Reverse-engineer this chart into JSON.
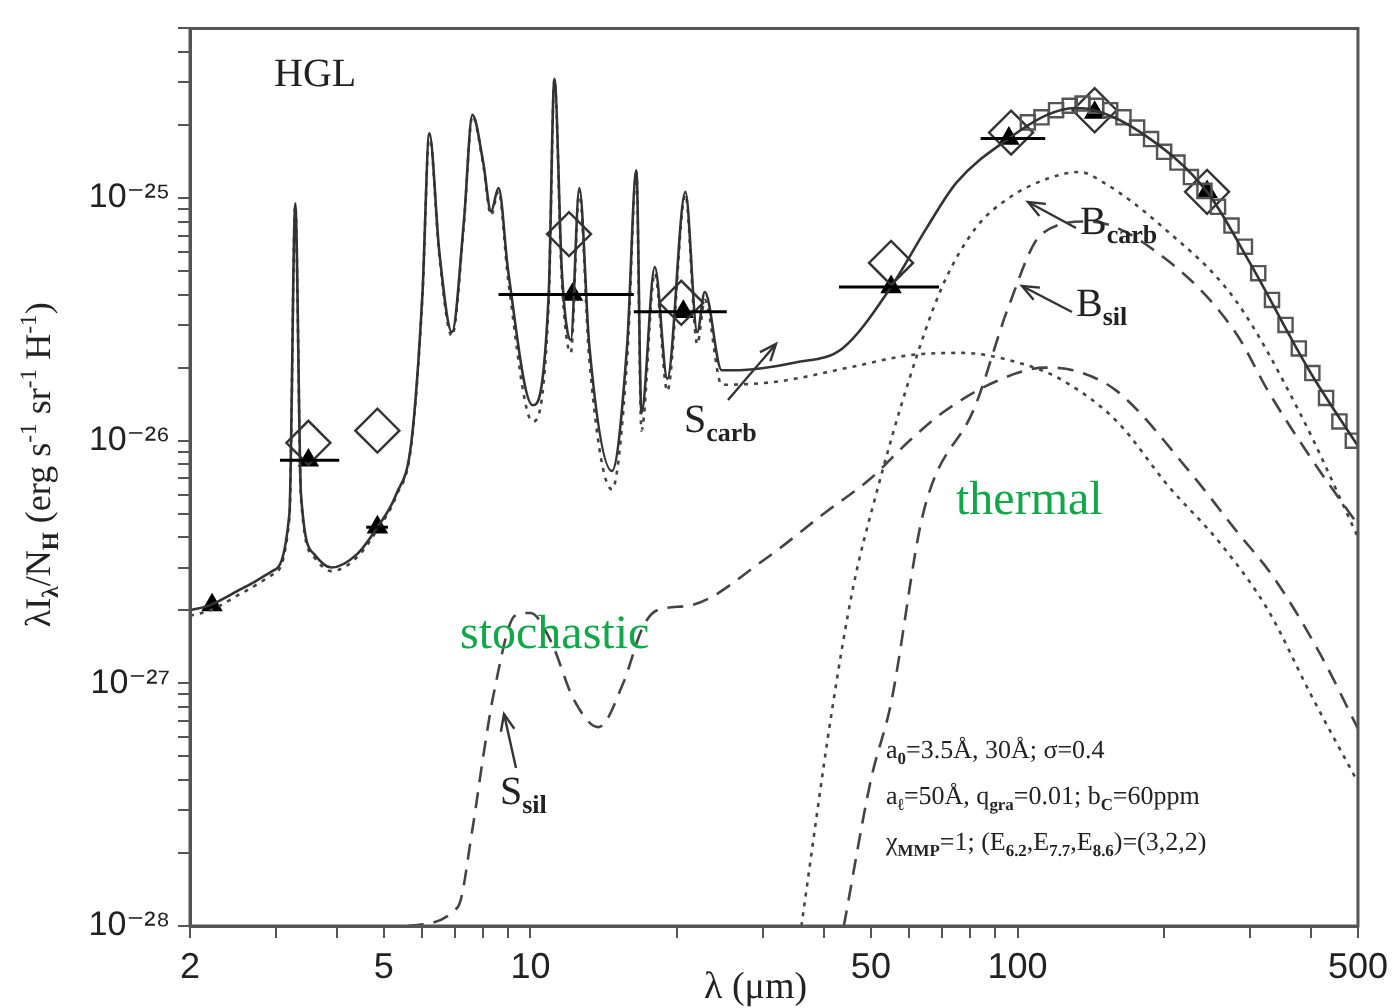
{
  "chart_data": {
    "type": "line",
    "xlabel": "λ (μm)",
    "ylabel": "λI$_{λ}$/N$_{H}$   (erg s$^{-1}$ sr$^{-1}$ H$^{-1}$)",
    "log": "xy",
    "legend": false,
    "xlim": [
      2,
      500
    ],
    "ylim": [
      1e-28,
      5e-25
    ],
    "xticks": [
      2,
      {
        "value": 3,
        "label": null
      },
      {
        "value": 4,
        "label": null
      },
      5,
      {
        "value": 6,
        "label": null
      },
      {
        "value": 7,
        "label": null
      },
      {
        "value": 8,
        "label": null
      },
      {
        "value": 9,
        "label": null
      },
      10,
      {
        "value": 20,
        "label": null
      },
      {
        "value": 30,
        "label": null
      },
      {
        "value": 40,
        "label": null
      },
      50,
      {
        "value": 60,
        "label": null
      },
      {
        "value": 70,
        "label": null
      },
      {
        "value": 80,
        "label": null
      },
      {
        "value": 90,
        "label": null
      },
      100,
      {
        "value": 200,
        "label": null
      },
      {
        "value": 300,
        "label": null
      },
      {
        "value": 400,
        "label": null
      },
      500
    ],
    "yticks": [
      {
        "value": 1e-28,
        "label": "10⁻²⁸"
      },
      {
        "value": 2e-28,
        "label": null
      },
      {
        "value": 3e-28,
        "label": null
      },
      {
        "value": 4e-28,
        "label": null
      },
      {
        "value": 5e-28,
        "label": null
      },
      {
        "value": 6e-28,
        "label": null
      },
      {
        "value": 7e-28,
        "label": null
      },
      {
        "value": 8e-28,
        "label": null
      },
      {
        "value": 9e-28,
        "label": null
      },
      {
        "value": 1e-27,
        "label": "10⁻²⁷"
      },
      {
        "value": 2e-27,
        "label": null
      },
      {
        "value": 3e-27,
        "label": null
      },
      {
        "value": 4e-27,
        "label": null
      },
      {
        "value": 5e-27,
        "label": null
      },
      {
        "value": 6e-27,
        "label": null
      },
      {
        "value": 7e-27,
        "label": null
      },
      {
        "value": 8e-27,
        "label": null
      },
      {
        "value": 9e-27,
        "label": null
      },
      {
        "value": 1e-26,
        "label": "10⁻²⁶"
      },
      {
        "value": 2e-26,
        "label": null
      },
      {
        "value": 3e-26,
        "label": null
      },
      {
        "value": 4e-26,
        "label": null
      },
      {
        "value": 5e-26,
        "label": null
      },
      {
        "value": 6e-26,
        "label": null
      },
      {
        "value": 7e-26,
        "label": null
      },
      {
        "value": 8e-26,
        "label": null
      },
      {
        "value": 9e-26,
        "label": null
      },
      {
        "value": 1e-25,
        "label": "10⁻²⁵"
      },
      {
        "value": 2e-25,
        "label": null
      },
      {
        "value": 3e-25,
        "label": null
      },
      {
        "value": 4e-25,
        "label": null
      },
      {
        "value": 5e-25,
        "label": null
      }
    ],
    "series": [
      {
        "type": "line",
        "color": "#333333",
        "line_style": "solid",
        "marker": "none",
        "x": [
          2.0,
          2.2,
          2.6,
          2.95,
          3.2,
          3.29,
          3.38,
          3.6,
          3.9,
          4.4,
          4.85,
          5.3,
          5.7,
          6.0,
          6.2,
          6.5,
          6.9,
          7.3,
          7.6,
          8.0,
          8.3,
          8.6,
          9.0,
          10.1,
          10.9,
          11.2,
          11.6,
          12.1,
          12.6,
          13.2,
          14.7,
          15.8,
          16.5,
          16.9,
          18.0,
          19.1,
          20.8,
          22.0,
          22.8,
          24.7,
          26,
          35,
          43.7,
          55,
          65,
          75,
          96,
          115,
          131,
          144,
          180,
          245,
          300,
          400,
          500
        ],
        "values": [
          2e-27,
          2.1e-27,
          2.5e-27,
          2.9e-27,
          5e-27,
          9.5e-26,
          6e-27,
          3.4e-27,
          3e-27,
          3.4e-27,
          4.4e-27,
          6e-27,
          1e-26,
          4e-26,
          1.85e-25,
          6e-26,
          2.8e-26,
          8e-26,
          2.2e-25,
          1.4e-25,
          8.8e-26,
          1.1e-25,
          5e-26,
          1.4e-26,
          4e-26,
          3.1e-25,
          5e-26,
          2.6e-26,
          1.1e-25,
          2.5e-26,
          7.5e-27,
          2.5e-26,
          1.3e-25,
          1.3e-26,
          5.2e-26,
          1.8e-26,
          1.06e-25,
          2.8e-26,
          4.1e-26,
          1.95e-26,
          1.95e-26,
          2.1e-26,
          2.4e-26,
          4.3e-26,
          7.5e-26,
          1.16e-25,
          1.76e-25,
          2.2e-25,
          2.35e-25,
          2.3e-25,
          1.85e-25,
          1.06e-25,
          5.4e-26,
          1.9e-26,
          9.5e-27
        ]
      },
      {
        "type": "line",
        "color": "#444444",
        "line_style": "dotted",
        "marker": "none",
        "x": [
          2.0,
          2.2,
          2.6,
          2.95,
          3.2,
          3.29,
          3.38,
          3.6,
          3.9,
          4.4,
          4.85,
          5.3,
          5.7,
          6.0,
          6.2,
          6.5,
          6.9,
          7.3,
          7.6,
          8.0,
          8.3,
          8.6,
          9.0,
          10.1,
          10.9,
          11.2,
          11.6,
          12.1,
          12.6,
          13.2,
          14.7,
          15.8,
          16.5,
          16.9,
          18.0,
          19.1,
          20.8,
          22.0,
          22.8,
          24.7,
          32,
          45,
          60,
          77,
          100,
          122,
          160,
          204,
          260,
          327,
          400,
          500
        ],
        "values": [
          1.9e-27,
          2e-27,
          2.4e-27,
          2.8e-27,
          4.8e-27,
          9.3e-26,
          5.8e-27,
          3.3e-27,
          2.9e-27,
          3.3e-27,
          4.3e-27,
          5.9e-27,
          9.8e-27,
          3.9e-26,
          1.83e-25,
          5.8e-26,
          2.7e-26,
          7.8e-26,
          2.18e-25,
          1.37e-25,
          8.5e-26,
          1.07e-25,
          4.6e-26,
          1.2e-26,
          3.7e-26,
          3.08e-25,
          4.6e-26,
          2.3e-26,
          1.07e-25,
          2.2e-26,
          6.3e-27,
          2.2e-26,
          1.27e-25,
          1.1e-26,
          4.9e-26,
          1.6e-26,
          1.03e-25,
          2.5e-26,
          3.8e-26,
          1.7e-26,
          1.75e-26,
          2e-26,
          2.25e-26,
          2.3e-26,
          2.1e-26,
          1.8e-26,
          1.2e-26,
          6.5e-27,
          3.8e-27,
          2e-27,
          9e-28,
          3.9e-28
        ]
      },
      {
        "type": "line",
        "color": "#444444",
        "line_style": "dashed",
        "marker": "none",
        "x": [
          5.6,
          7.1,
          7.6,
          8.0,
          8.4,
          9.3,
          10.0,
          11.0,
          12.3,
          13.8,
          15.5,
          17.0,
          18.2,
          21.4,
          30,
          40,
          50,
          60,
          70,
          90,
          114,
          130,
          160,
          225,
          280,
          337,
          420,
          500
        ],
        "values": [
          1e-28,
          1.2e-28,
          2.5e-28,
          5e-28,
          9e-28,
          1.9e-27,
          1.95e-27,
          1.5e-27,
          8.5e-28,
          6.6e-28,
          1e-27,
          1.7e-27,
          2e-27,
          2.1e-27,
          3.2e-27,
          5e-27,
          7e-27,
          1e-26,
          1.3e-26,
          1.75e-26,
          2e-26,
          1.95e-26,
          1.6e-26,
          7.5e-27,
          4.3e-27,
          2.7e-27,
          1.3e-27,
          6.5e-28
        ]
      },
      {
        "type": "line",
        "color": "#444444",
        "line_style": "dotted",
        "marker": "none",
        "x": [
          36,
          41.5,
          46,
          51,
          60,
          70,
          82,
          96,
          115,
          134,
          149,
          200,
          280,
          380,
          500
        ],
        "values": [
          1e-28,
          7.5e-28,
          2.5e-27,
          5.8e-27,
          1.8e-26,
          4.3e-26,
          7.5e-26,
          1e-25,
          1.2e-25,
          1.28e-25,
          1.17e-25,
          7.5e-26,
          3.8e-26,
          1.3e-26,
          4e-27
        ]
      },
      {
        "type": "line",
        "color": "#444444",
        "line_style": "dashed",
        "marker": "none",
        "x": [
          44,
          50,
          55,
          64,
          82,
          96,
          112,
          140,
          204,
          280,
          327,
          400,
          500
        ],
        "values": [
          1e-28,
          4e-28,
          8.3e-28,
          5e-27,
          1.4e-26,
          3.6e-26,
          7.1e-26,
          8e-26,
          5.5e-26,
          2.8e-26,
          1.6e-26,
          8.5e-27,
          4.5e-27
        ]
      },
      {
        "type": "scatter",
        "color": "#555555",
        "marker": "square",
        "x": [
          105,
          112,
          120,
          128,
          136,
          145,
          155,
          165,
          176,
          188,
          200,
          213,
          227,
          242,
          258,
          275,
          293,
          312,
          333,
          355,
          378,
          403,
          430,
          458,
          488
        ],
        "values": [
          2.05e-25,
          2.15e-25,
          2.3e-25,
          2.4e-25,
          2.45e-25,
          2.4e-25,
          2.3e-25,
          2.15e-25,
          1.95e-25,
          1.75e-25,
          1.55e-25,
          1.4e-25,
          1.22e-25,
          1.07e-25,
          9.2e-26,
          7.7e-26,
          6.3e-26,
          4.9e-26,
          3.8e-26,
          3e-26,
          2.4e-26,
          1.9e-26,
          1.5e-26,
          1.2e-26,
          1e-26
        ]
      },
      {
        "type": "scatter",
        "color": "#333333",
        "marker": "diamond",
        "x": [
          3.5,
          4.85,
          12,
          20.4,
          55,
          97,
          144,
          245
        ],
        "values": [
          9.8e-27,
          1.1e-26,
          7.1e-26,
          3.7e-26,
          5.4e-26,
          1.86e-25,
          2.3e-25,
          1.06e-25
        ]
      },
      {
        "type": "scatter",
        "color": "#000000",
        "marker": "triangle",
        "x": [
          2.22,
          3.5,
          4.85,
          12.2,
          20.6,
          55,
          96,
          144,
          245
        ],
        "values": [
          2.1e-27,
          8.3e-27,
          4.4e-27,
          4e-26,
          3.4e-26,
          4.3e-26,
          1.76e-25,
          2.25e-25,
          1.06e-25
        ],
        "xerrors": [
          null,
          [
            3.06,
            4.05
          ],
          [
            4.6,
            5.1
          ],
          [
            8.6,
            16.3
          ],
          [
            16.3,
            25.3
          ],
          [
            43,
            69
          ],
          [
            84,
            114
          ],
          null,
          null
        ]
      }
    ],
    "annotations": [
      "HGL",
      "B$_{carb}$",
      "B$_{sil}$",
      "S$_{carb}$",
      "S$_{sil}$",
      "stochastic",
      "thermal",
      "a$_{0}$=3.5Å, 30Å; σ=0.4",
      "a$_{ℓ}$=50Å, q$_{gra}$=0.01; b$_{C}$=60ppm",
      "χ$_{MMP}$=1; (E$_{6.2}$,E$_{7.7}$,E$_{8.6}$)=(3,2,2)"
    ]
  }
}
